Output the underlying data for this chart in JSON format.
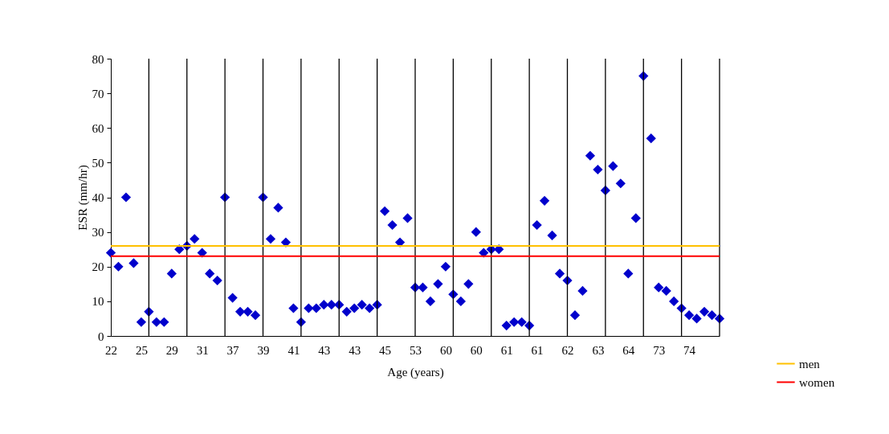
{
  "chart_data": {
    "type": "scatter",
    "xlabel": "Age (years)",
    "ylabel": "ESR (mm/hr)",
    "categories": [
      "22",
      null,
      null,
      null,
      "25",
      null,
      null,
      null,
      "29",
      null,
      null,
      null,
      "31",
      null,
      null,
      null,
      "37",
      null,
      null,
      null,
      "39",
      null,
      null,
      null,
      "41",
      null,
      null,
      null,
      "43",
      null,
      null,
      null,
      "43",
      null,
      null,
      null,
      "45",
      null,
      null,
      null,
      "53",
      null,
      null,
      null,
      "60",
      null,
      null,
      null,
      "60",
      null,
      null,
      null,
      "61",
      null,
      null,
      null,
      "61",
      null,
      null,
      null,
      "62",
      null,
      null,
      null,
      "63",
      null,
      null,
      null,
      "64",
      null,
      null,
      null,
      "73",
      null,
      null,
      null,
      "74",
      null,
      null,
      null,
      null
    ],
    "series": [
      {
        "color": "#0000cc",
        "values": [
          24,
          20,
          40,
          21,
          4,
          7,
          4,
          4,
          18,
          25,
          26,
          28,
          24,
          18,
          16,
          40,
          11,
          7,
          7,
          6,
          40,
          28,
          37,
          27,
          8,
          4,
          8,
          8,
          9,
          9,
          9,
          7,
          8,
          9,
          8,
          9,
          36,
          32,
          27,
          34,
          14,
          14,
          10,
          15,
          20,
          12,
          10,
          15,
          30,
          24,
          25,
          25,
          3,
          4,
          4,
          3,
          32,
          39,
          29,
          18,
          16,
          6,
          13,
          52,
          48,
          42,
          49,
          44,
          18,
          34,
          75,
          57,
          14,
          13,
          10,
          8,
          6,
          5,
          7,
          6,
          5
        ]
      }
    ],
    "marker": "diamond",
    "ylim": [
      0,
      80
    ],
    "yticks": [
      0,
      10,
      20,
      30,
      40,
      50,
      60,
      70,
      80
    ],
    "grid": "x",
    "ref_lines": [
      {
        "axis": "y",
        "value": 26,
        "label": "men",
        "color": "#ffc000"
      },
      {
        "axis": "y",
        "value": 23,
        "label": "women",
        "color": "#ff0000"
      }
    ],
    "legend": "right"
  }
}
